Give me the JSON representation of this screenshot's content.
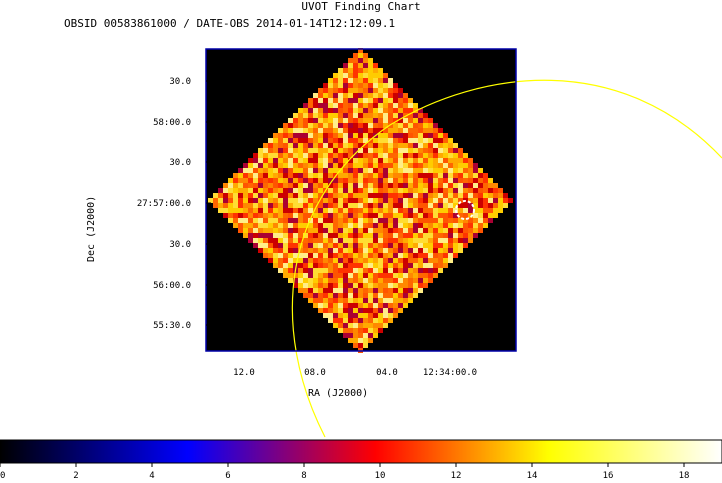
{
  "chart_data": {
    "type": "heatmap",
    "title": "UVOT Finding Chart",
    "subtitle": "OBSID 00583861000 / DATE-OBS 2014-01-14T12:12:09.1",
    "xlabel": "RA (J2000)",
    "ylabel": "Dec (J2000)",
    "x_ticks": [
      "12.0",
      "08.0",
      "04.0",
      "12:34:00.0"
    ],
    "y_ticks": [
      "30.0",
      "58:00.0",
      "30.0",
      "27:57:00.0",
      "30.0",
      "56:00.0",
      "55:30.0"
    ],
    "colorbar": {
      "ticks": [
        "0",
        "2",
        "4",
        "6",
        "8",
        "10",
        "12",
        "14",
        "16",
        "18"
      ],
      "range": [
        0,
        19
      ],
      "colors": [
        "#000000",
        "#0000ff",
        "#ff0000",
        "#ffff00",
        "#ffffff"
      ]
    },
    "overlay_color": "#ffff00",
    "image_background": "#000000",
    "frame_color": "#0000aa"
  }
}
